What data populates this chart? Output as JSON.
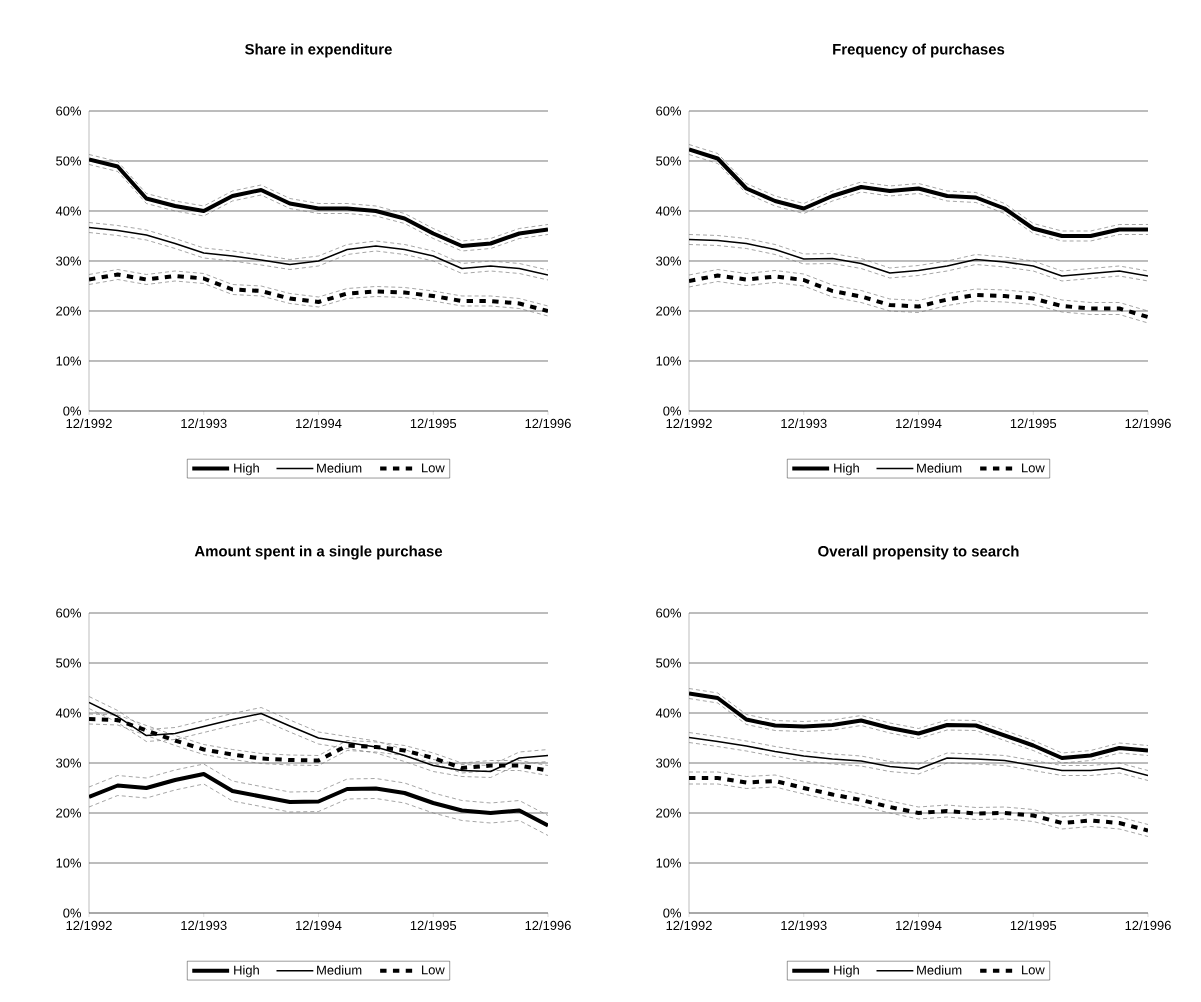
{
  "chart_data": [
    {
      "type": "line",
      "title": "Share in expenditure",
      "legend": "bottom",
      "grid": "y",
      "x": [
        "1992-12",
        "1993-03",
        "1993-06",
        "1993-09",
        "1993-12",
        "1994-03",
        "1994-06",
        "1994-09",
        "1994-12",
        "1995-03",
        "1995-06",
        "1995-09",
        "1995-12",
        "1996-03",
        "1996-06",
        "1996-09",
        "1996-12"
      ],
      "xlim": [
        "1992-12",
        "1996-12"
      ],
      "xticks": [
        {
          "value": "1992-12",
          "label": "12/1992"
        },
        {
          "value": "1993-12",
          "label": "12/1993"
        },
        {
          "value": "1994-12",
          "label": "12/1994"
        },
        {
          "value": "1995-12",
          "label": "12/1995"
        },
        {
          "value": "1996-12",
          "label": "12/1996"
        }
      ],
      "ylim": [
        0,
        60
      ],
      "yticks": [
        {
          "value": 0,
          "label": "0%"
        },
        {
          "value": 10,
          "label": "10%"
        },
        {
          "value": 20,
          "label": "20%"
        },
        {
          "value": 30,
          "label": "30%"
        },
        {
          "value": 40,
          "label": "40%"
        },
        {
          "value": 50,
          "label": "50%"
        },
        {
          "value": 60,
          "label": "60%"
        }
      ],
      "series": [
        {
          "color": "#808080",
          "line_style": "dashed",
          "values": [
            49.3,
            47.9,
            41.5,
            40,
            39,
            42,
            43.2,
            40.5,
            39.5,
            39.5,
            39,
            37.5,
            34.5,
            32,
            32.5,
            34.5,
            35.3
          ]
        },
        {
          "color": "#808080",
          "line_style": "dashed",
          "values": [
            51.3,
            49.9,
            43.5,
            42,
            41,
            44,
            45.2,
            42.5,
            41.5,
            41.5,
            41,
            39.5,
            36.5,
            34,
            34.5,
            36.5,
            37.3
          ]
        },
        {
          "color": "#808080",
          "line_style": "dashed",
          "values": [
            35.7,
            35.1,
            34.2,
            32.5,
            30.6,
            30,
            29.2,
            28.3,
            29,
            31.3,
            32,
            31.3,
            30,
            27.5,
            28,
            27.5,
            26.2
          ]
        },
        {
          "color": "#808080",
          "line_style": "dashed",
          "values": [
            37.7,
            37.1,
            36.2,
            34.5,
            32.6,
            32,
            31.2,
            30.3,
            31,
            33.3,
            34,
            33.3,
            32,
            29.5,
            30,
            29.5,
            28.2
          ]
        },
        {
          "color": "#808080",
          "line_style": "dashed",
          "values": [
            25.3,
            26.3,
            25.3,
            26,
            25.5,
            23.3,
            23,
            21.5,
            20.8,
            22.5,
            22.9,
            22.7,
            22,
            21,
            21,
            20.5,
            19
          ]
        },
        {
          "color": "#808080",
          "line_style": "dashed",
          "values": [
            27.3,
            28.3,
            27.3,
            28,
            27.5,
            25.3,
            25,
            23.5,
            22.8,
            24.5,
            24.9,
            24.7,
            24,
            23,
            23,
            22.5,
            21
          ]
        },
        {
          "name": "High",
          "color": "#000000",
          "line_style": "solid",
          "values": [
            50.3,
            48.9,
            42.5,
            41,
            40,
            43,
            44.2,
            41.5,
            40.5,
            40.5,
            40,
            38.5,
            35.5,
            33,
            33.5,
            35.5,
            36.3
          ]
        },
        {
          "name": "Medium",
          "color": "#000000",
          "line_style": "solid",
          "values": [
            36.7,
            36.1,
            35.2,
            33.5,
            31.6,
            31,
            30.2,
            29.3,
            30,
            32.3,
            33,
            32.3,
            31,
            28.5,
            29,
            28.5,
            27.2
          ]
        },
        {
          "name": "Low",
          "color": "#000000",
          "line_style": "dashed",
          "values": [
            26.3,
            27.3,
            26.3,
            27,
            26.5,
            24.3,
            24,
            22.5,
            21.8,
            23.5,
            23.9,
            23.7,
            23,
            22,
            22,
            21.5,
            20
          ]
        }
      ]
    },
    {
      "type": "line",
      "title": "Frequency of purchases",
      "legend": "bottom",
      "grid": "y",
      "x": [
        "1992-12",
        "1993-03",
        "1993-06",
        "1993-09",
        "1993-12",
        "1994-03",
        "1994-06",
        "1994-09",
        "1994-12",
        "1995-03",
        "1995-06",
        "1995-09",
        "1995-12",
        "1996-03",
        "1996-06",
        "1996-09",
        "1996-12"
      ],
      "xlim": [
        "1992-12",
        "1996-12"
      ],
      "xticks": [
        {
          "value": "1992-12",
          "label": "12/1992"
        },
        {
          "value": "1993-12",
          "label": "12/1993"
        },
        {
          "value": "1994-12",
          "label": "12/1994"
        },
        {
          "value": "1995-12",
          "label": "12/1995"
        },
        {
          "value": "1996-12",
          "label": "12/1996"
        }
      ],
      "ylim": [
        0,
        60
      ],
      "yticks": [
        {
          "value": 0,
          "label": "0%"
        },
        {
          "value": 10,
          "label": "10%"
        },
        {
          "value": 20,
          "label": "20%"
        },
        {
          "value": 30,
          "label": "30%"
        },
        {
          "value": 40,
          "label": "40%"
        },
        {
          "value": 50,
          "label": "50%"
        },
        {
          "value": 60,
          "label": "60%"
        }
      ],
      "series": [
        {
          "color": "#808080",
          "line_style": "dashed",
          "values": [
            51.3,
            49.5,
            43.5,
            41,
            39.5,
            42,
            43.8,
            43,
            43.5,
            42,
            41.7,
            39.5,
            35.5,
            34,
            34,
            35.3,
            35.3
          ]
        },
        {
          "color": "#808080",
          "line_style": "dashed",
          "values": [
            53.3,
            51.5,
            45.5,
            43,
            41.5,
            44,
            45.8,
            45,
            45.5,
            44,
            43.7,
            41.5,
            37.5,
            36,
            36,
            37.3,
            37.3
          ]
        },
        {
          "color": "#808080",
          "line_style": "dashed",
          "values": [
            33.3,
            33.1,
            32.5,
            31.3,
            29.4,
            29.5,
            28.5,
            26.6,
            27.1,
            28,
            29.3,
            28.8,
            28,
            26,
            26.5,
            27,
            26
          ]
        },
        {
          "color": "#808080",
          "line_style": "dashed",
          "values": [
            35.3,
            35.1,
            34.5,
            33.3,
            31.4,
            31.5,
            30.5,
            28.6,
            29.1,
            30,
            31.3,
            30.8,
            30,
            28,
            28.5,
            29,
            28
          ]
        },
        {
          "color": "#808080",
          "line_style": "dashed",
          "values": [
            24.8,
            25.9,
            25.1,
            25.7,
            25,
            22.8,
            21.7,
            20,
            19.7,
            21.1,
            22,
            21.8,
            21.3,
            19.8,
            19.3,
            19.3,
            17.6
          ]
        },
        {
          "color": "#808080",
          "line_style": "dashed",
          "values": [
            27.2,
            28.3,
            27.5,
            28.1,
            27.4,
            25.2,
            24.1,
            22.4,
            22.1,
            23.5,
            24.4,
            24.2,
            23.7,
            22.2,
            21.7,
            21.7,
            20
          ]
        },
        {
          "name": "High",
          "color": "#000000",
          "line_style": "solid",
          "values": [
            52.3,
            50.5,
            44.5,
            42,
            40.5,
            43,
            44.8,
            44,
            44.5,
            43,
            42.7,
            40.5,
            36.5,
            35,
            35,
            36.3,
            36.3
          ]
        },
        {
          "name": "Medium",
          "color": "#000000",
          "line_style": "solid",
          "values": [
            34.3,
            34.1,
            33.5,
            32.3,
            30.4,
            30.5,
            29.5,
            27.6,
            28.1,
            29,
            30.3,
            29.8,
            29,
            27,
            27.5,
            28,
            27
          ]
        },
        {
          "name": "Low",
          "color": "#000000",
          "line_style": "dashed",
          "values": [
            26,
            27.1,
            26.3,
            26.9,
            26.2,
            24,
            22.9,
            21.2,
            20.9,
            22.3,
            23.2,
            23,
            22.5,
            21,
            20.5,
            20.5,
            18.8
          ]
        }
      ]
    },
    {
      "type": "line",
      "title": "Amount spent in a single purchase",
      "legend": "bottom",
      "grid": "y",
      "x": [
        "1992-12",
        "1993-03",
        "1993-06",
        "1993-09",
        "1993-12",
        "1994-03",
        "1994-06",
        "1994-09",
        "1994-12",
        "1995-03",
        "1995-06",
        "1995-09",
        "1995-12",
        "1996-03",
        "1996-06",
        "1996-09",
        "1996-12"
      ],
      "xlim": [
        "1992-12",
        "1996-12"
      ],
      "xticks": [
        {
          "value": "1992-12",
          "label": "12/1992"
        },
        {
          "value": "1993-12",
          "label": "12/1993"
        },
        {
          "value": "1994-12",
          "label": "12/1994"
        },
        {
          "value": "1995-12",
          "label": "12/1995"
        },
        {
          "value": "1996-12",
          "label": "12/1996"
        }
      ],
      "ylim": [
        0,
        60
      ],
      "yticks": [
        {
          "value": 0,
          "label": "0%"
        },
        {
          "value": 10,
          "label": "10%"
        },
        {
          "value": 20,
          "label": "20%"
        },
        {
          "value": 30,
          "label": "30%"
        },
        {
          "value": 40,
          "label": "40%"
        },
        {
          "value": 50,
          "label": "50%"
        },
        {
          "value": 60,
          "label": "60%"
        }
      ],
      "series": [
        {
          "color": "#808080",
          "line_style": "dashed",
          "values": [
            21.2,
            23.5,
            23,
            24.6,
            25.8,
            22.4,
            21.3,
            20.2,
            20.3,
            22.8,
            22.9,
            22,
            20,
            18.5,
            18,
            18.5,
            15.5
          ]
        },
        {
          "color": "#808080",
          "line_style": "dashed",
          "values": [
            25.2,
            27.5,
            27,
            28.6,
            29.8,
            26.4,
            25.3,
            24.2,
            24.3,
            26.8,
            26.9,
            26,
            24,
            22.5,
            22,
            22.5,
            19.5
          ]
        },
        {
          "color": "#808080",
          "line_style": "dashed",
          "values": [
            40.9,
            38.1,
            34.3,
            34.7,
            36.1,
            37.5,
            38.7,
            36.2,
            33.8,
            32.9,
            32,
            30.3,
            28.3,
            27.3,
            27.1,
            29.8,
            30.3
          ]
        },
        {
          "color": "#808080",
          "line_style": "dashed",
          "values": [
            43.3,
            40.5,
            36.7,
            37.1,
            38.5,
            39.9,
            41.1,
            38.6,
            36.2,
            35.3,
            34.4,
            32.7,
            30.7,
            29.7,
            29.5,
            32.2,
            32.7
          ]
        },
        {
          "color": "#808080",
          "line_style": "dashed",
          "values": [
            37.8,
            37.6,
            35.5,
            33.5,
            31.7,
            30.7,
            29.9,
            29.6,
            29.5,
            32.5,
            32.2,
            31.5,
            30,
            28,
            28.5,
            28.5,
            27.5
          ]
        },
        {
          "color": "#808080",
          "line_style": "dashed",
          "values": [
            39.8,
            39.6,
            37.5,
            35.5,
            33.7,
            32.7,
            31.9,
            31.6,
            31.5,
            34.5,
            34.2,
            33.5,
            32,
            30,
            30.5,
            30.5,
            29.5
          ]
        },
        {
          "name": "High",
          "color": "#000000",
          "line_style": "solid",
          "values": [
            23.2,
            25.5,
            25,
            26.6,
            27.8,
            24.4,
            23.3,
            22.2,
            22.3,
            24.8,
            24.9,
            24,
            22,
            20.5,
            20,
            20.5,
            17.5
          ]
        },
        {
          "name": "Medium",
          "color": "#000000",
          "line_style": "solid",
          "values": [
            42.1,
            39.3,
            35.5,
            35.9,
            37.3,
            38.7,
            39.9,
            37.4,
            35,
            34.1,
            33.2,
            31.5,
            29.5,
            28.5,
            28.3,
            31,
            31.5
          ]
        },
        {
          "name": "Low",
          "color": "#000000",
          "line_style": "dashed",
          "values": [
            38.8,
            38.6,
            36.5,
            34.5,
            32.7,
            31.7,
            30.9,
            30.6,
            30.5,
            33.5,
            33.2,
            32.5,
            31,
            29,
            29.5,
            29.5,
            28.5
          ]
        }
      ]
    },
    {
      "type": "line",
      "title": "Overall propensity to search",
      "legend": "bottom",
      "grid": "y",
      "x": [
        "1992-12",
        "1993-03",
        "1993-06",
        "1993-09",
        "1993-12",
        "1994-03",
        "1994-06",
        "1994-09",
        "1994-12",
        "1995-03",
        "1995-06",
        "1995-09",
        "1995-12",
        "1996-03",
        "1996-06",
        "1996-09",
        "1996-12"
      ],
      "xlim": [
        "1992-12",
        "1996-12"
      ],
      "xticks": [
        {
          "value": "1992-12",
          "label": "12/1992"
        },
        {
          "value": "1993-12",
          "label": "12/1993"
        },
        {
          "value": "1994-12",
          "label": "12/1994"
        },
        {
          "value": "1995-12",
          "label": "12/1995"
        },
        {
          "value": "1996-12",
          "label": "12/1996"
        }
      ],
      "ylim": [
        0,
        60
      ],
      "yticks": [
        {
          "value": 0,
          "label": "0%"
        },
        {
          "value": 10,
          "label": "10%"
        },
        {
          "value": 20,
          "label": "20%"
        },
        {
          "value": 30,
          "label": "30%"
        },
        {
          "value": 40,
          "label": "40%"
        },
        {
          "value": 50,
          "label": "50%"
        },
        {
          "value": 60,
          "label": "60%"
        }
      ],
      "series": [
        {
          "color": "#808080",
          "line_style": "dashed",
          "values": [
            42.9,
            42,
            37.7,
            36.5,
            36.3,
            36.6,
            37.5,
            36,
            34.9,
            36.6,
            36.5,
            34.5,
            32.5,
            30,
            30.5,
            32,
            31.5
          ]
        },
        {
          "color": "#808080",
          "line_style": "dashed",
          "values": [
            44.9,
            44,
            39.7,
            38.5,
            38.3,
            38.6,
            39.5,
            38,
            36.9,
            38.6,
            38.5,
            36.5,
            34.5,
            32,
            32.5,
            34,
            33.5
          ]
        },
        {
          "color": "#808080",
          "line_style": "dashed",
          "values": [
            34.1,
            33.3,
            32.4,
            31.3,
            30.4,
            29.8,
            29.4,
            28.3,
            27.8,
            30,
            29.8,
            29.5,
            28.5,
            27.5,
            27.5,
            28,
            26.5
          ]
        },
        {
          "color": "#808080",
          "line_style": "dashed",
          "values": [
            36.1,
            35.3,
            34.4,
            33.3,
            32.4,
            31.8,
            31.4,
            30.3,
            29.8,
            32,
            31.8,
            31.5,
            30.5,
            29.5,
            29.5,
            30,
            28.5
          ]
        },
        {
          "color": "#808080",
          "line_style": "dashed",
          "values": [
            25.8,
            25.8,
            24.9,
            25.2,
            23.8,
            22.5,
            21.4,
            20,
            18.8,
            19.2,
            18.7,
            18.8,
            18.3,
            16.8,
            17.3,
            16.8,
            15.3
          ]
        },
        {
          "color": "#808080",
          "line_style": "dashed",
          "values": [
            28.2,
            28.2,
            27.3,
            27.6,
            26.2,
            24.9,
            23.8,
            22.4,
            21.2,
            21.6,
            21.1,
            21.2,
            20.7,
            19.2,
            19.7,
            19.2,
            17.7
          ]
        },
        {
          "name": "High",
          "color": "#000000",
          "line_style": "solid",
          "values": [
            43.9,
            43,
            38.7,
            37.5,
            37.3,
            37.6,
            38.5,
            37,
            35.9,
            37.6,
            37.5,
            35.5,
            33.5,
            31,
            31.5,
            33,
            32.5
          ]
        },
        {
          "name": "Medium",
          "color": "#000000",
          "line_style": "solid",
          "values": [
            35.1,
            34.3,
            33.4,
            32.3,
            31.4,
            30.8,
            30.4,
            29.3,
            28.8,
            31,
            30.8,
            30.5,
            29.5,
            28.5,
            28.5,
            29,
            27.5
          ]
        },
        {
          "name": "Low",
          "color": "#000000",
          "line_style": "dashed",
          "values": [
            27,
            27,
            26.1,
            26.4,
            25,
            23.7,
            22.6,
            21.2,
            20,
            20.4,
            19.9,
            20,
            19.5,
            18,
            18.5,
            18,
            16.5
          ]
        }
      ]
    }
  ]
}
